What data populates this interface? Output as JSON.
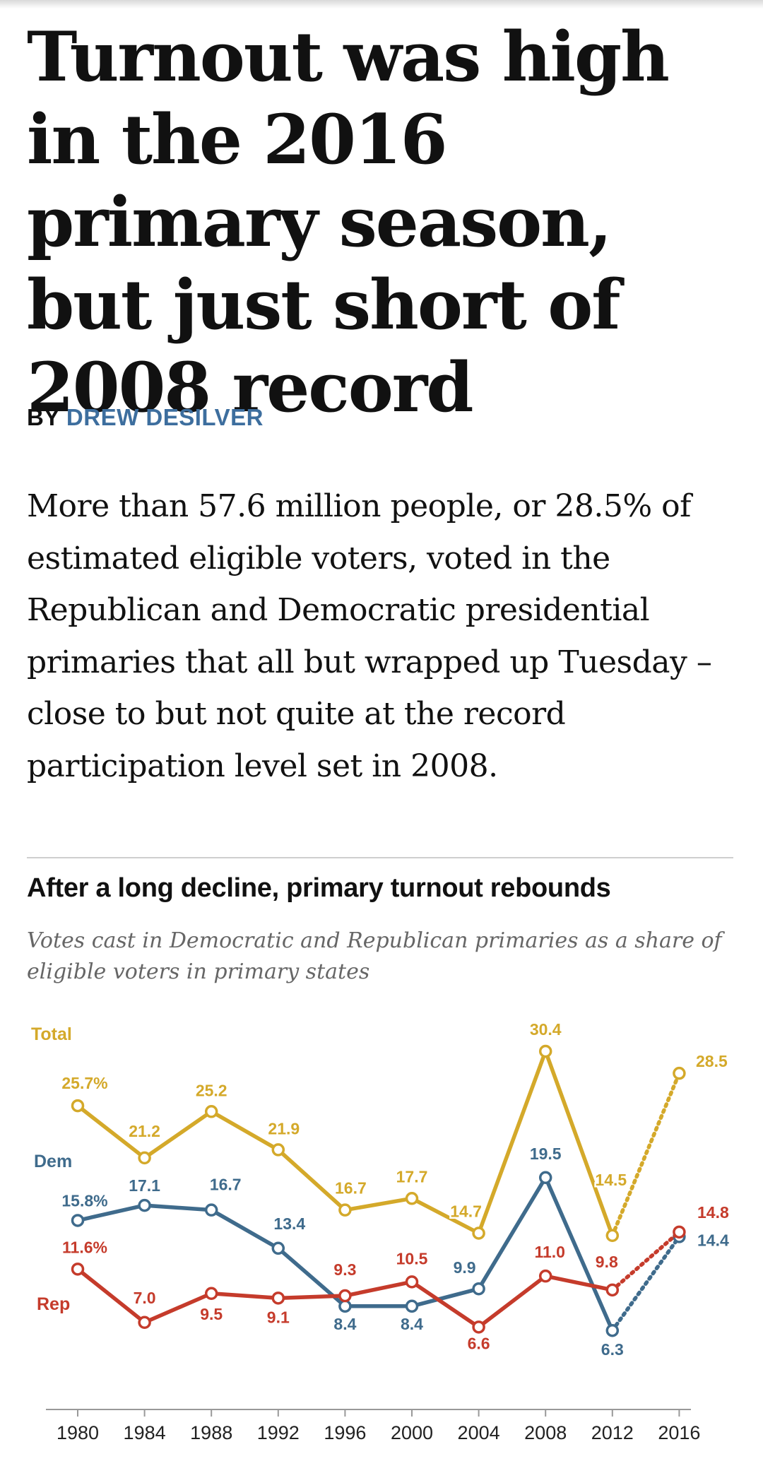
{
  "article": {
    "headline": "Turnout was high in the 2016 primary season, but just short of 2008 record",
    "byline_prefix": "BY",
    "author": "DREW DESILVER",
    "lede": "More than 57.6 million people, or 28.5% of estimated eligible voters, voted in the Republican and Democratic presidential primaries that all but wrapped up Tuesday – close to but not quite at the record participation level set in 2008."
  },
  "chart_data": {
    "type": "line",
    "title": "After a long decline, primary turnout rebounds",
    "subtitle": "Votes cast in Democratic and Republican primaries as a share of eligible voters in primary states",
    "categories": [
      "1980",
      "1984",
      "1988",
      "1992",
      "1996",
      "2000",
      "2004",
      "2008",
      "2012",
      "2016"
    ],
    "xlabel": "",
    "ylabel": "",
    "unit": "%",
    "grid": false,
    "legend": "inline labels at left",
    "dashed_segment": [
      "2012",
      "2016"
    ],
    "series": [
      {
        "name": "Total",
        "color": "#d4a92a",
        "values": [
          25.7,
          21.2,
          25.2,
          21.9,
          16.7,
          17.7,
          14.7,
          30.4,
          14.5,
          28.5
        ],
        "labels": [
          "25.7%",
          "21.2",
          "25.2",
          "21.9",
          "16.7",
          "17.7",
          "14.7",
          "30.4",
          "14.5",
          "28.5"
        ]
      },
      {
        "name": "Dem",
        "color": "#3f6b8c",
        "values": [
          15.8,
          17.1,
          16.7,
          13.4,
          8.4,
          8.4,
          9.9,
          19.5,
          6.3,
          14.4
        ],
        "labels": [
          "15.8%",
          "17.1",
          "16.7",
          "13.4",
          "8.4",
          "8.4",
          "9.9",
          "19.5",
          "6.3",
          "14.4"
        ]
      },
      {
        "name": "Rep",
        "color": "#c53b2b",
        "values": [
          11.6,
          7.0,
          9.5,
          9.1,
          9.3,
          10.5,
          6.6,
          11.0,
          9.8,
          14.8
        ],
        "labels": [
          "11.6%",
          "7.0",
          "9.5",
          "9.1",
          "9.3",
          "10.5",
          "6.6",
          "11.0",
          "9.8",
          "14.8"
        ]
      }
    ]
  }
}
